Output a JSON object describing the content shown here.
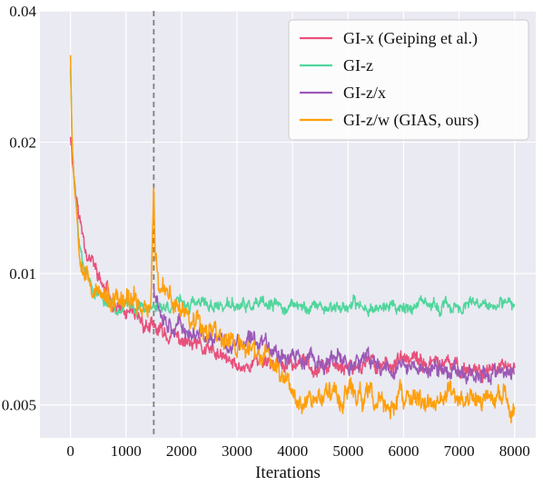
{
  "chart_data": {
    "type": "line",
    "title": "",
    "xlabel": "Iterations",
    "ylabel": "",
    "xlim": [
      -550,
      8380
    ],
    "ylim": [
      0.0042,
      0.04
    ],
    "yscale": "log",
    "x_ticks": [
      0,
      1000,
      2000,
      3000,
      4000,
      5000,
      6000,
      7000,
      8000
    ],
    "x_tick_labels": [
      "0",
      "1000",
      "2000",
      "3000",
      "4000",
      "5000",
      "6000",
      "7000",
      "8000"
    ],
    "y_ticks": [
      0.005,
      0.01,
      0.02,
      0.04
    ],
    "y_tick_labels": [
      "0.005",
      "0.01",
      "0.02",
      "0.04"
    ],
    "grid": true,
    "background": "#eaeaf2",
    "legend_position": "top-right",
    "vline": {
      "x": 1500,
      "style": "dashed",
      "color": "#7f7f7f"
    },
    "series": [
      {
        "name": "GI-x (Geiping et al.)",
        "color": "#e8507a",
        "noise": 0.045,
        "seed": 11,
        "points": [
          [
            0,
            0.021
          ],
          [
            60,
            0.017
          ],
          [
            150,
            0.0135
          ],
          [
            300,
            0.0113
          ],
          [
            450,
            0.0102
          ],
          [
            600,
            0.0092
          ],
          [
            800,
            0.0085
          ],
          [
            1000,
            0.008
          ],
          [
            1200,
            0.0078
          ],
          [
            1400,
            0.0076
          ],
          [
            1500,
            0.0074
          ],
          [
            1650,
            0.0073
          ],
          [
            1800,
            0.0072
          ],
          [
            2000,
            0.007
          ],
          [
            2200,
            0.0068
          ],
          [
            2500,
            0.0066
          ],
          [
            2800,
            0.0063
          ],
          [
            3000,
            0.0061
          ],
          [
            3200,
            0.0062
          ],
          [
            3500,
            0.0064
          ],
          [
            3800,
            0.0061
          ],
          [
            4000,
            0.0062
          ],
          [
            4300,
            0.0063
          ],
          [
            4700,
            0.0061
          ],
          [
            5000,
            0.0062
          ],
          [
            5500,
            0.0062
          ],
          [
            6000,
            0.0063
          ],
          [
            6500,
            0.0062
          ],
          [
            7000,
            0.0061
          ],
          [
            7500,
            0.006
          ],
          [
            8000,
            0.006
          ]
        ]
      },
      {
        "name": "GI-z",
        "color": "#4fd69c",
        "noise": 0.035,
        "seed": 23,
        "points": [
          [
            0,
            0.03
          ],
          [
            30,
            0.02
          ],
          [
            80,
            0.016
          ],
          [
            150,
            0.012
          ],
          [
            250,
            0.0105
          ],
          [
            400,
            0.0093
          ],
          [
            600,
            0.0087
          ],
          [
            800,
            0.0085
          ],
          [
            1000,
            0.0084
          ],
          [
            1500,
            0.0084
          ],
          [
            2000,
            0.0085
          ],
          [
            3000,
            0.0084
          ],
          [
            4000,
            0.0084
          ],
          [
            5000,
            0.0084
          ],
          [
            6000,
            0.0084
          ],
          [
            7000,
            0.0084
          ],
          [
            8000,
            0.0084
          ]
        ]
      },
      {
        "name": "GI-z/x",
        "color": "#9b59b6",
        "noise": 0.05,
        "seed": 37,
        "points": [
          [
            1500,
            0.0095
          ],
          [
            1600,
            0.0085
          ],
          [
            1750,
            0.0079
          ],
          [
            2000,
            0.0075
          ],
          [
            2300,
            0.0072
          ],
          [
            2600,
            0.007
          ],
          [
            2900,
            0.0068
          ],
          [
            3200,
            0.0069
          ],
          [
            3500,
            0.0071
          ],
          [
            3700,
            0.0067
          ],
          [
            4000,
            0.0064
          ],
          [
            4500,
            0.0062
          ],
          [
            5000,
            0.0063
          ],
          [
            5500,
            0.0062
          ],
          [
            6000,
            0.0061
          ],
          [
            6500,
            0.006
          ],
          [
            7000,
            0.006
          ],
          [
            7500,
            0.0059
          ],
          [
            8000,
            0.0058
          ]
        ]
      },
      {
        "name": "GI-z/w (GIAS, ours)",
        "color": "#ff9f0a",
        "noise": 0.065,
        "seed": 53,
        "points": [
          [
            0,
            0.033
          ],
          [
            30,
            0.02
          ],
          [
            80,
            0.016
          ],
          [
            150,
            0.012
          ],
          [
            250,
            0.0105
          ],
          [
            400,
            0.0093
          ],
          [
            600,
            0.0087
          ],
          [
            800,
            0.0085
          ],
          [
            1000,
            0.0085
          ],
          [
            1200,
            0.0085
          ],
          [
            1450,
            0.0085
          ],
          [
            1500,
            0.0165
          ],
          [
            1530,
            0.011
          ],
          [
            1600,
            0.009
          ],
          [
            1800,
            0.0087
          ],
          [
            2000,
            0.0083
          ],
          [
            2200,
            0.0081
          ],
          [
            2500,
            0.0075
          ],
          [
            2800,
            0.0071
          ],
          [
            3000,
            0.0068
          ],
          [
            3300,
            0.0066
          ],
          [
            3600,
            0.0063
          ],
          [
            3900,
            0.0057
          ],
          [
            4100,
            0.0053
          ],
          [
            4300,
            0.0052
          ],
          [
            4600,
            0.0053
          ],
          [
            4900,
            0.0053
          ],
          [
            5200,
            0.0053
          ],
          [
            5500,
            0.005
          ],
          [
            5700,
            0.005
          ],
          [
            6000,
            0.0051
          ],
          [
            6500,
            0.0051
          ],
          [
            7000,
            0.0052
          ],
          [
            7500,
            0.0051
          ],
          [
            8000,
            0.005
          ]
        ]
      }
    ]
  }
}
